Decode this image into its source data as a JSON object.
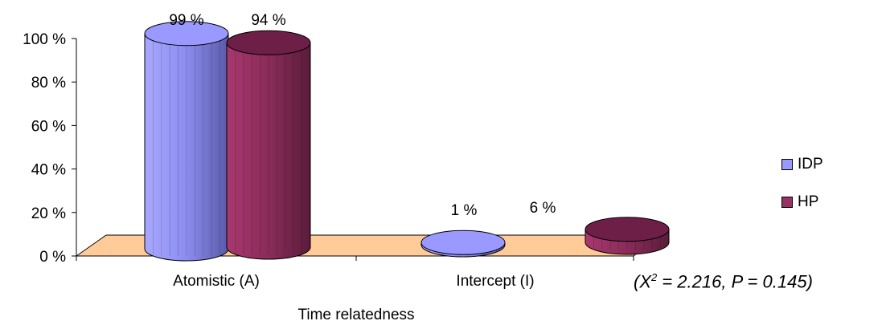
{
  "chart_data": {
    "type": "bar",
    "categories": [
      "Atomistic (A)",
      "Intercept (I)"
    ],
    "series": [
      {
        "name": "IDP",
        "values": [
          99,
          1
        ],
        "labels": [
          "99 %",
          "1 %"
        ],
        "color": "#9999ff"
      },
      {
        "name": "HP",
        "values": [
          94,
          6
        ],
        "labels": [
          "94 %",
          "6 %"
        ],
        "color": "#993366"
      }
    ],
    "xlabel": "Time relatedness",
    "ylabel": "",
    "ylim": [
      0,
      100
    ],
    "yticks": [
      "0 %",
      "20 %",
      "40 %",
      "60 %",
      "80 %",
      "100 %"
    ],
    "floor_color": "#ffcc99",
    "legend_position": "right",
    "stat_prefix": "(X",
    "stat_sup": "2",
    "stat_rest": " = 2.216, P = 0.145)"
  }
}
